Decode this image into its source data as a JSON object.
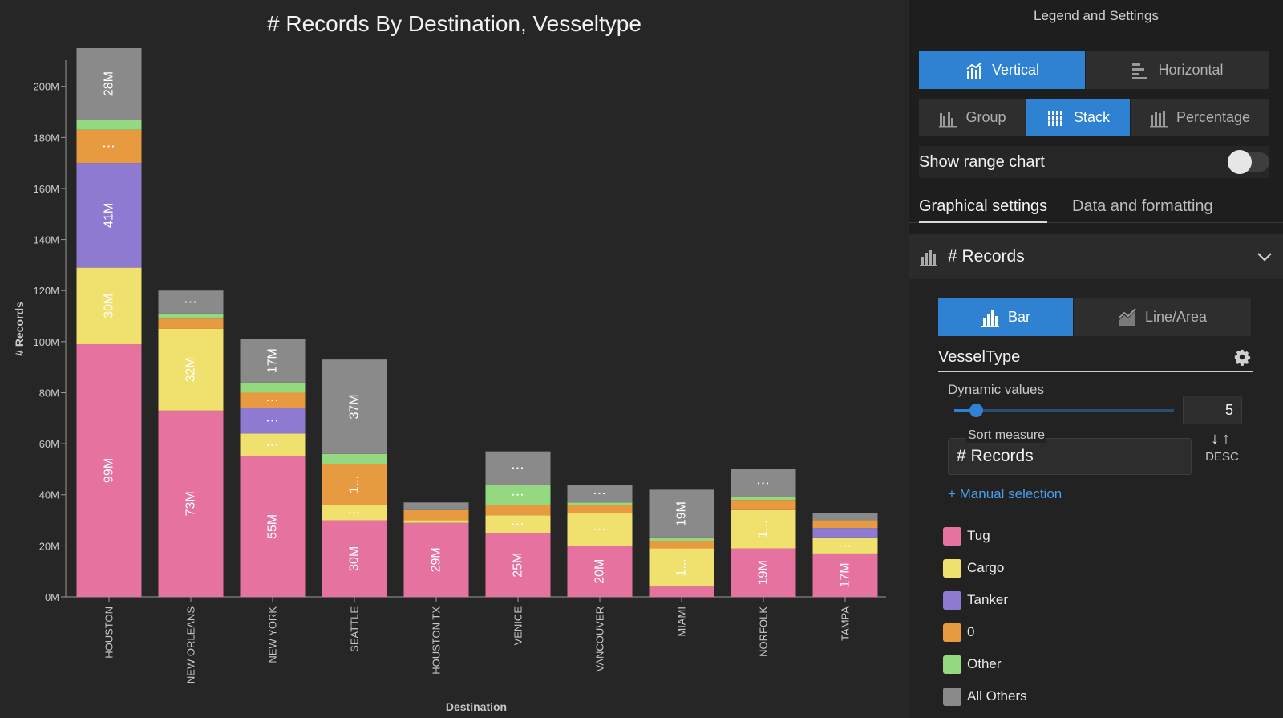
{
  "chart_data": {
    "type": "bar",
    "stacked": true,
    "title": "# Records By Destination, Vesseltype",
    "xlabel": "Destination",
    "ylabel": "# Records",
    "ylim": [
      0,
      215000000
    ],
    "yticks": [
      {
        "value": 0,
        "label": "0M"
      },
      {
        "value": 20000000,
        "label": "20M"
      },
      {
        "value": 40000000,
        "label": "40M"
      },
      {
        "value": 60000000,
        "label": "60M"
      },
      {
        "value": 80000000,
        "label": "80M"
      },
      {
        "value": 100000000,
        "label": "100M"
      },
      {
        "value": 120000000,
        "label": "120M"
      },
      {
        "value": 140000000,
        "label": "140M"
      },
      {
        "value": 160000000,
        "label": "160M"
      },
      {
        "value": 180000000,
        "label": "180M"
      },
      {
        "value": 200000000,
        "label": "200M"
      }
    ],
    "categories": [
      "HOUSTON",
      "NEW ORLEANS",
      "NEW YORK",
      "SEATTLE",
      "HOUSTON TX",
      "VENICE",
      "VANCOUVER",
      "MIAMI",
      "NORFOLK",
      "TAMPA"
    ],
    "series": [
      {
        "name": "Tug",
        "color": "#e6739f",
        "values": [
          99000000,
          73000000,
          55000000,
          30000000,
          29000000,
          25000000,
          20000000,
          4000000,
          19000000,
          17000000
        ],
        "labels": [
          "99M",
          "73M",
          "55M",
          "30M",
          "29M",
          "25M",
          "20M",
          "",
          "19M",
          "17M"
        ]
      },
      {
        "name": "Cargo",
        "color": "#f0e06e",
        "values": [
          30000000,
          32000000,
          9000000,
          6000000,
          1000000,
          7000000,
          13000000,
          15000000,
          15000000,
          6000000
        ],
        "labels": [
          "30M",
          "32M",
          "⋮",
          "⋮",
          "",
          "⋮",
          "⋮",
          "1...",
          "1...",
          "⋮"
        ]
      },
      {
        "name": "Tanker",
        "color": "#8f7ad1",
        "values": [
          41000000,
          0,
          10000000,
          0,
          0,
          0,
          0,
          0,
          0,
          4000000
        ],
        "labels": [
          "41M",
          "",
          "⋮",
          "",
          "",
          "",
          "",
          "",
          "",
          ""
        ]
      },
      {
        "name": "0",
        "color": "#e89a40",
        "values": [
          13000000,
          4000000,
          6000000,
          16000000,
          4000000,
          4000000,
          3000000,
          3000000,
          4000000,
          3000000
        ],
        "labels": [
          "⋮",
          "",
          "⋮",
          "1...",
          "",
          "",
          "",
          "",
          "",
          ""
        ]
      },
      {
        "name": "Other",
        "color": "#94d97f",
        "values": [
          4000000,
          2000000,
          4000000,
          4000000,
          0,
          8000000,
          1000000,
          1000000,
          1000000,
          0
        ],
        "labels": [
          "",
          "",
          "",
          "",
          "",
          "⋮",
          "",
          "",
          "",
          ""
        ]
      },
      {
        "name": "All Others",
        "color": "#8a8a8a",
        "values": [
          28000000,
          9000000,
          17000000,
          37000000,
          3000000,
          13000000,
          7000000,
          19000000,
          11000000,
          3000000
        ],
        "labels": [
          "28M",
          "⋮",
          "17M",
          "37M",
          "",
          "⋮",
          "⋮",
          "19M",
          "⋮",
          ""
        ]
      }
    ]
  },
  "panel": {
    "title": "Legend and Settings",
    "orientation": [
      {
        "label": "Vertical",
        "icon": "vertical-chart-icon",
        "active": true
      },
      {
        "label": "Horizontal",
        "icon": "horizontal-chart-icon",
        "active": false
      }
    ],
    "mode": [
      {
        "label": "Group",
        "icon": "group-bars-icon",
        "active": false
      },
      {
        "label": "Stack",
        "icon": "stack-bars-icon",
        "active": true
      },
      {
        "label": "Percentage",
        "icon": "percentage-bars-icon",
        "active": false
      }
    ],
    "range_chart_label": "Show range chart",
    "tabs": [
      {
        "label": "Graphical settings",
        "active": true
      },
      {
        "label": "Data and formatting",
        "active": false
      }
    ],
    "measure_header": "# Records",
    "chart_types": [
      {
        "label": "Bar",
        "icon": "bar-chart-icon",
        "active": true
      },
      {
        "label": "Line/Area",
        "icon": "line-area-icon",
        "active": false
      }
    ],
    "dimension": "VesselType",
    "dynamic_values_label": "Dynamic values",
    "dynamic_values": "5",
    "slider_fraction": 0.1,
    "sort_measure_label": "Sort measure",
    "sort_measure_value": "# Records",
    "sort_direction": "DESC",
    "manual_selection": "+ Manual selection",
    "legend": [
      {
        "label": "Tug",
        "color": "#e6739f"
      },
      {
        "label": "Cargo",
        "color": "#f0e06e"
      },
      {
        "label": "Tanker",
        "color": "#8f7ad1"
      },
      {
        "label": "0",
        "color": "#e89a40"
      },
      {
        "label": "Other",
        "color": "#94d97f"
      },
      {
        "label": "All Others",
        "color": "#8a8a8a"
      }
    ]
  }
}
